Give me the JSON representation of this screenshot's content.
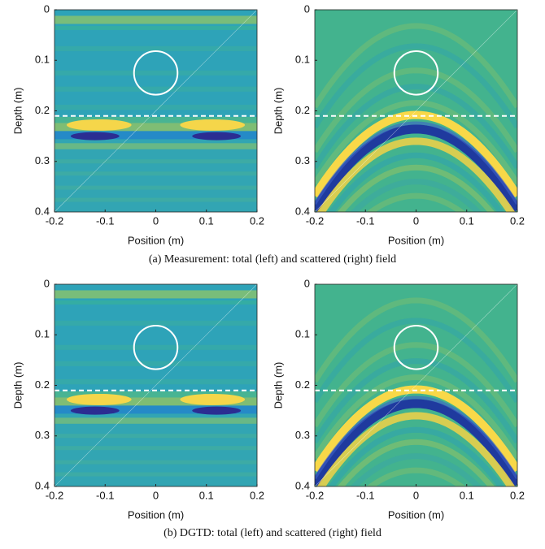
{
  "chart_data": [
    {
      "type": "heatmap",
      "xlabel": "Position (m)",
      "ylabel": "Depth (m)",
      "xlim": [
        -0.2,
        0.2
      ],
      "ylim": [
        0,
        0.4
      ],
      "y_inverted": true,
      "xticks": [
        -0.2,
        -0.1,
        0,
        0.1,
        0.2
      ],
      "yticks": [
        0,
        0.1,
        0.2,
        0.3,
        0.4
      ],
      "field": "total",
      "circle": {
        "x": 0,
        "y": 0.125,
        "r": 0.043
      },
      "dashed_line": 0.21
    },
    {
      "type": "heatmap",
      "xlabel": "Position (m)",
      "ylabel": "Depth (m)",
      "xlim": [
        -0.2,
        0.2
      ],
      "ylim": [
        0,
        0.4
      ],
      "y_inverted": true,
      "xticks": [
        -0.2,
        -0.1,
        0,
        0.1,
        0.2
      ],
      "yticks": [
        0,
        0.1,
        0.2,
        0.3,
        0.4
      ],
      "field": "scattered",
      "circle": {
        "x": 0,
        "y": 0.125,
        "r": 0.043
      },
      "dashed_line": 0.21
    },
    {
      "type": "heatmap",
      "xlabel": "Position (m)",
      "ylabel": "Depth (m)",
      "xlim": [
        -0.2,
        0.2
      ],
      "ylim": [
        0,
        0.4
      ],
      "y_inverted": true,
      "xticks": [
        -0.2,
        -0.1,
        0,
        0.1,
        0.2
      ],
      "yticks": [
        0,
        0.1,
        0.2,
        0.3,
        0.4
      ],
      "field": "total",
      "circle": {
        "x": 0,
        "y": 0.125,
        "r": 0.043
      },
      "dashed_line": 0.21
    },
    {
      "type": "heatmap",
      "xlabel": "Position (m)",
      "ylabel": "Depth (m)",
      "xlim": [
        -0.2,
        0.2
      ],
      "ylim": [
        0,
        0.4
      ],
      "y_inverted": true,
      "xticks": [
        -0.2,
        -0.1,
        0,
        0.1,
        0.2
      ],
      "yticks": [
        0,
        0.1,
        0.2,
        0.3,
        0.4
      ],
      "field": "scattered",
      "circle": {
        "x": 0,
        "y": 0.125,
        "r": 0.043
      },
      "dashed_line": 0.21
    }
  ],
  "captions": [
    "(a) Measurement: total (left) and scattered (right) field",
    "(b) DGTD: total (left) and scattered (right) field"
  ]
}
